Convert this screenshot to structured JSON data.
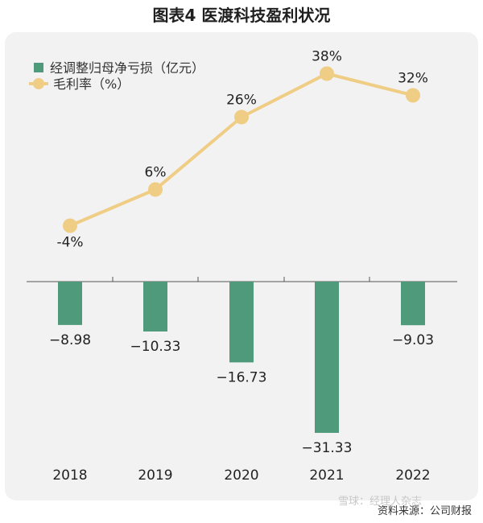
{
  "title": "图表4  医渡科技盈利状况",
  "source": "资料来源：公司财报",
  "watermark": "雪球：经理人杂志",
  "chart_data": {
    "type": "bar",
    "categories": [
      "2018",
      "2019",
      "2020",
      "2021",
      "2022"
    ],
    "series": [
      {
        "name": "经调整归母净亏损（亿元）",
        "type": "bar",
        "color": "#4e9a7a",
        "values": [
          -8.98,
          -10.33,
          -16.73,
          -31.33,
          -9.03
        ],
        "labels": [
          "−8.98",
          "−10.33",
          "−16.73",
          "−31.33",
          "−9.03"
        ]
      },
      {
        "name": "毛利率（%）",
        "type": "line",
        "color": "#f0cd85",
        "values": [
          -4,
          6,
          26,
          38,
          32
        ],
        "labels": [
          "-4%",
          "6%",
          "26%",
          "38%",
          "32%"
        ]
      }
    ],
    "legend": "top-left"
  }
}
